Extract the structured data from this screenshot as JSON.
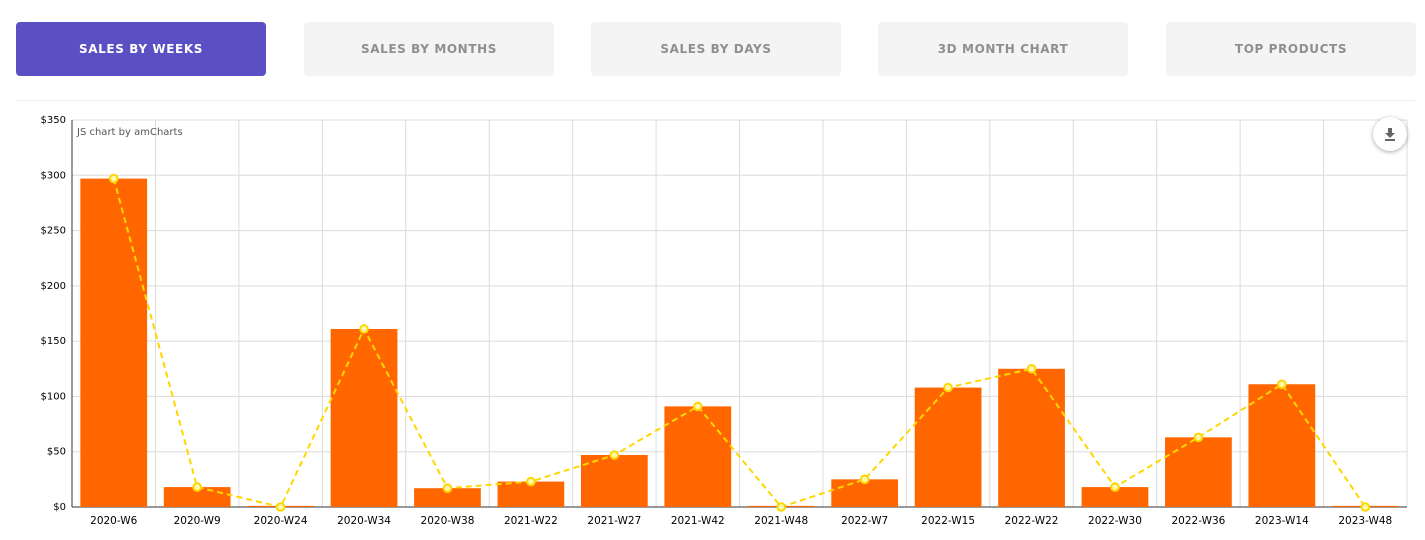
{
  "tabs": [
    {
      "label": "SALES BY WEEKS",
      "active": true
    },
    {
      "label": "SALES BY MONTHS",
      "active": false
    },
    {
      "label": "SALES BY DAYS",
      "active": false
    },
    {
      "label": "3D MONTH CHART",
      "active": false
    },
    {
      "label": "TOP PRODUCTS",
      "active": false
    }
  ],
  "credit": "JS chart by amCharts",
  "colors": {
    "accent": "#5b4fc4",
    "bar": "#ff6600",
    "line": "#ffd700"
  },
  "chart_data": {
    "type": "bar",
    "categories": [
      "2020-W6",
      "2020-W9",
      "2020-W24",
      "2020-W34",
      "2020-W38",
      "2021-W22",
      "2021-W27",
      "2021-W42",
      "2021-W48",
      "2022-W7",
      "2022-W15",
      "2022-W22",
      "2022-W30",
      "2022-W36",
      "2023-W14",
      "2023-W48"
    ],
    "series": [
      {
        "type": "bar",
        "values": [
          297,
          18,
          1,
          161,
          17,
          23,
          47,
          91,
          1,
          25,
          108,
          125,
          18,
          63,
          111,
          1
        ]
      },
      {
        "type": "line",
        "style": "dashed",
        "values": [
          297,
          18,
          0,
          161,
          17,
          23,
          47,
          91,
          0,
          25,
          108,
          125,
          18,
          63,
          111,
          0
        ]
      }
    ],
    "y_ticks": [
      "$0",
      "$50",
      "$100",
      "$150",
      "$200",
      "$250",
      "$300",
      "$350"
    ],
    "ylim": [
      0,
      350
    ],
    "grid": true,
    "title": "",
    "xlabel": "",
    "ylabel": ""
  }
}
